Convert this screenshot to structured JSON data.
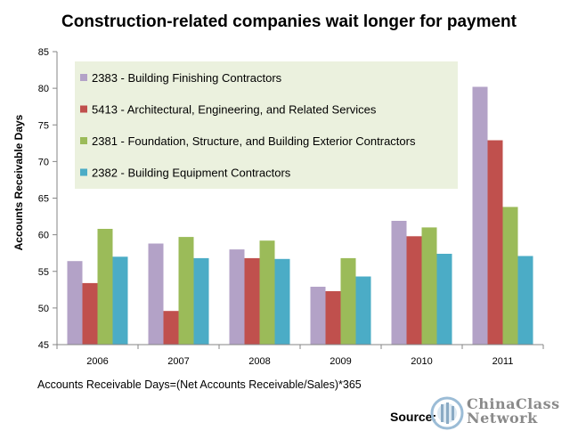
{
  "chart_data": {
    "type": "bar",
    "title": "Construction-related  companies wait longer for payment",
    "ylabel": "Accounts Receivable Days",
    "xlabel": "",
    "ylim": [
      45,
      85
    ],
    "yticks": [
      45,
      50,
      55,
      60,
      65,
      70,
      75,
      80,
      85
    ],
    "categories": [
      "2006",
      "2007",
      "2008",
      "2009",
      "2010",
      "2011"
    ],
    "grid": false,
    "legend_position": "top-left inside plot",
    "series": [
      {
        "name": "2383 - Building Finishing Contractors",
        "color": "#b3a2c7",
        "values": [
          56.4,
          58.8,
          58.0,
          52.9,
          61.9,
          80.2
        ]
      },
      {
        "name": "5413 - Architectural, Engineering, and Related Services",
        "color": "#c0504d",
        "values": [
          53.4,
          49.6,
          56.8,
          52.3,
          59.8,
          72.9
        ]
      },
      {
        "name": "2381 - Foundation, Structure, and Building Exterior Contractors",
        "color": "#9bbb59",
        "values": [
          60.8,
          59.7,
          59.2,
          56.8,
          61.0,
          63.8
        ]
      },
      {
        "name": "2382 - Building Equipment Contractors",
        "color": "#4bacc6",
        "values": [
          57.0,
          56.8,
          56.7,
          54.3,
          57.4,
          57.1
        ]
      }
    ],
    "legend_background": "#ebf1de"
  },
  "footnote": "Accounts Receivable Days=(Net Accounts Receivable/Sales)*365",
  "source_label": "Source:",
  "watermark": {
    "icon": "chinaclass-logo-icon",
    "line1": "ChinaClass",
    "line2": "Network"
  }
}
